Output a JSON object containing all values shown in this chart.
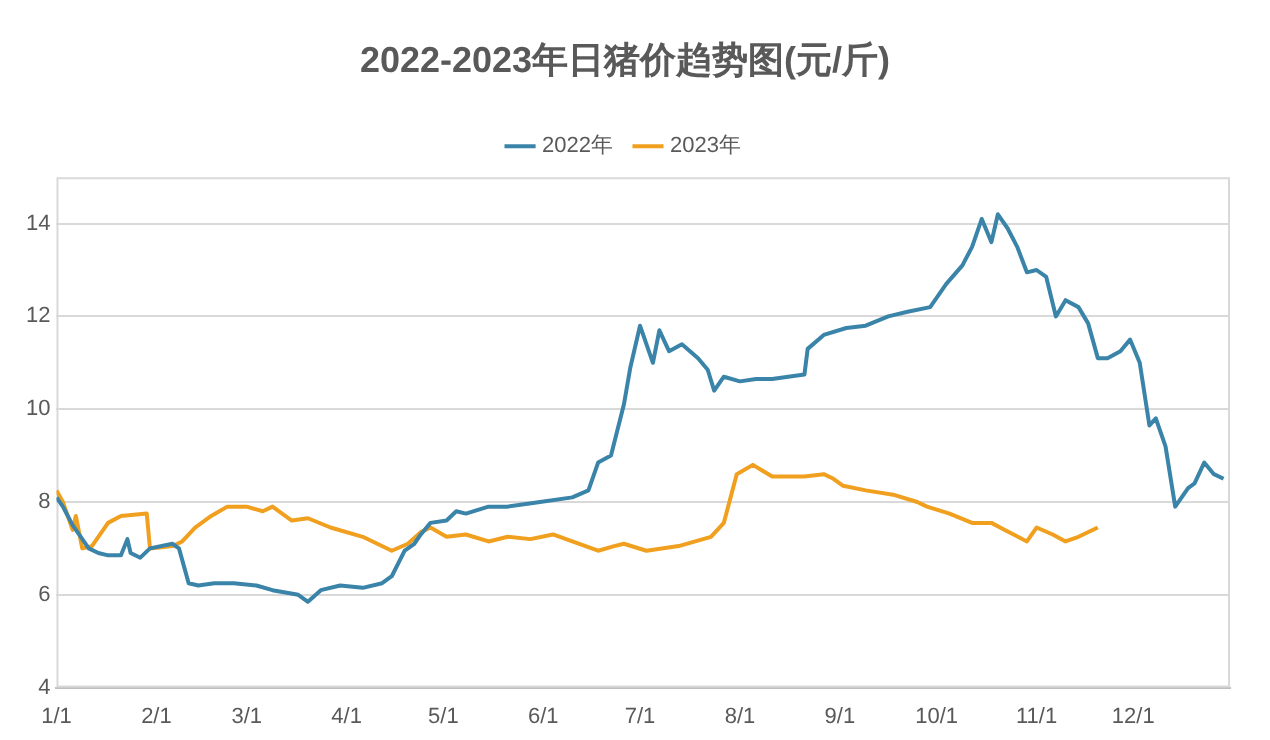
{
  "chart_data": {
    "type": "line",
    "title": "2022-2023年日猪价趋势图(元/斤)",
    "legend": "top",
    "grid": "y",
    "marker": "none",
    "line_style": "solid",
    "xlim": [
      "--01-01",
      "--12-31"
    ],
    "xticks": [
      {
        "value": "--01-01",
        "label": "1/1"
      },
      {
        "value": "--02-01",
        "label": "2/1"
      },
      {
        "value": "--03-01",
        "label": "3/1"
      },
      {
        "value": "--04-01",
        "label": "4/1"
      },
      {
        "value": "--05-01",
        "label": "5/1"
      },
      {
        "value": "--06-01",
        "label": "6/1"
      },
      {
        "value": "--07-01",
        "label": "7/1"
      },
      {
        "value": "--08-01",
        "label": "8/1"
      },
      {
        "value": "--09-01",
        "label": "9/1"
      },
      {
        "value": "--10-01",
        "label": "10/1"
      },
      {
        "value": "--11-01",
        "label": "11/1"
      },
      {
        "value": "--12-01",
        "label": "12/1"
      }
    ],
    "ylim": [
      4,
      15
    ],
    "yticks": [
      4,
      6,
      8,
      10,
      12,
      14
    ],
    "series": [
      {
        "name": "2022年",
        "color": "#3b84a9",
        "x": [
          "--01-01",
          "--01-03",
          "--01-06",
          "--01-08",
          "--01-11",
          "--01-14",
          "--01-17",
          "--01-21",
          "--01-23",
          "--01-24",
          "--01-27",
          "--01-30",
          "--02-06",
          "--02-08",
          "--02-11",
          "--02-14",
          "--02-19",
          "--02-25",
          "--03-04",
          "--03-09",
          "--03-17",
          "--03-20",
          "--03-24",
          "--03-30",
          "--04-06",
          "--04-12",
          "--04-15",
          "--04-19",
          "--04-22",
          "--04-24",
          "--04-27",
          "--05-02",
          "--05-05",
          "--05-08",
          "--05-15",
          "--05-21",
          "--05-31",
          "--06-10",
          "--06-15",
          "--06-18",
          "--06-22",
          "--06-26",
          "--06-28",
          "--07-01",
          "--07-05",
          "--07-07",
          "--07-10",
          "--07-14",
          "--07-19",
          "--07-22",
          "--07-24",
          "--07-27",
          "--08-01",
          "--08-06",
          "--08-11",
          "--08-21",
          "--08-22",
          "--08-27",
          "--09-03",
          "--09-09",
          "--09-16",
          "--09-22",
          "--09-29",
          "--10-04",
          "--10-09",
          "--10-12",
          "--10-15",
          "--10-18",
          "--10-20",
          "--10-23",
          "--10-26",
          "--10-29",
          "--11-01",
          "--11-04",
          "--11-07",
          "--11-10",
          "--11-14",
          "--11-17",
          "--11-20",
          "--11-23",
          "--11-27",
          "--11-30",
          "--12-03",
          "--12-06",
          "--12-08",
          "--12-11",
          "--12-14",
          "--12-18",
          "--12-20",
          "--12-23",
          "--12-26",
          "--12-29"
        ],
        "values": [
          8.1,
          7.9,
          7.5,
          7.3,
          7.0,
          6.9,
          6.85,
          6.85,
          7.2,
          6.9,
          6.8,
          7.0,
          7.1,
          7.0,
          6.25,
          6.2,
          6.25,
          6.25,
          6.2,
          6.1,
          6.0,
          5.85,
          6.1,
          6.2,
          6.15,
          6.25,
          6.4,
          6.95,
          7.1,
          7.3,
          7.55,
          7.6,
          7.8,
          7.75,
          7.9,
          7.9,
          8.0,
          8.1,
          8.25,
          8.85,
          9.0,
          10.1,
          10.9,
          11.8,
          11.0,
          11.7,
          11.25,
          11.4,
          11.1,
          10.85,
          10.4,
          10.7,
          10.6,
          10.65,
          10.65,
          10.75,
          11.3,
          11.6,
          11.75,
          11.8,
          12.0,
          12.1,
          12.2,
          12.7,
          13.1,
          13.5,
          14.1,
          13.6,
          14.2,
          13.9,
          13.5,
          12.95,
          13.0,
          12.85,
          12.0,
          12.35,
          12.2,
          11.85,
          11.1,
          11.1,
          11.25,
          11.5,
          11.0,
          9.65,
          9.8,
          9.2,
          7.9,
          8.3,
          8.4,
          8.85,
          8.6,
          8.5
        ]
      },
      {
        "name": "2023年",
        "color": "#f0a01e",
        "x": [
          "--01-01",
          "--01-03",
          "--01-06",
          "--01-07",
          "--01-09",
          "--01-12",
          "--01-17",
          "--01-21",
          "--01-29",
          "--01-30",
          "--02-06",
          "--02-09",
          "--02-13",
          "--02-18",
          "--02-23",
          "--03-01",
          "--03-06",
          "--03-09",
          "--03-15",
          "--03-20",
          "--03-27",
          "--04-06",
          "--04-15",
          "--04-20",
          "--04-24",
          "--04-27",
          "--05-02",
          "--05-08",
          "--05-15",
          "--05-21",
          "--05-28",
          "--06-04",
          "--06-10",
          "--06-18",
          "--06-23",
          "--06-26",
          "--07-03",
          "--07-13",
          "--07-23",
          "--07-27",
          "--07-31",
          "--08-05",
          "--08-11",
          "--08-21",
          "--08-27",
          "--08-30",
          "--09-02",
          "--09-09",
          "--09-18",
          "--09-25",
          "--09-28",
          "--10-05",
          "--10-12",
          "--10-18",
          "--10-22",
          "--10-29",
          "--11-01",
          "--11-06",
          "--11-10",
          "--11-14",
          "--11-20"
        ],
        "values": [
          8.25,
          8.0,
          7.4,
          7.7,
          7.0,
          7.05,
          7.55,
          7.7,
          7.75,
          7.0,
          7.05,
          7.15,
          7.45,
          7.7,
          7.9,
          7.9,
          7.8,
          7.9,
          7.6,
          7.65,
          7.45,
          7.25,
          6.95,
          7.1,
          7.35,
          7.45,
          7.25,
          7.3,
          7.15,
          7.25,
          7.2,
          7.3,
          7.15,
          6.95,
          7.05,
          7.1,
          6.95,
          7.05,
          7.25,
          7.55,
          8.6,
          8.8,
          8.55,
          8.55,
          8.6,
          8.5,
          8.35,
          8.25,
          8.15,
          8.0,
          7.9,
          7.75,
          7.55,
          7.55,
          7.4,
          7.15,
          7.45,
          7.3,
          7.15,
          7.25,
          7.45
        ]
      }
    ]
  }
}
